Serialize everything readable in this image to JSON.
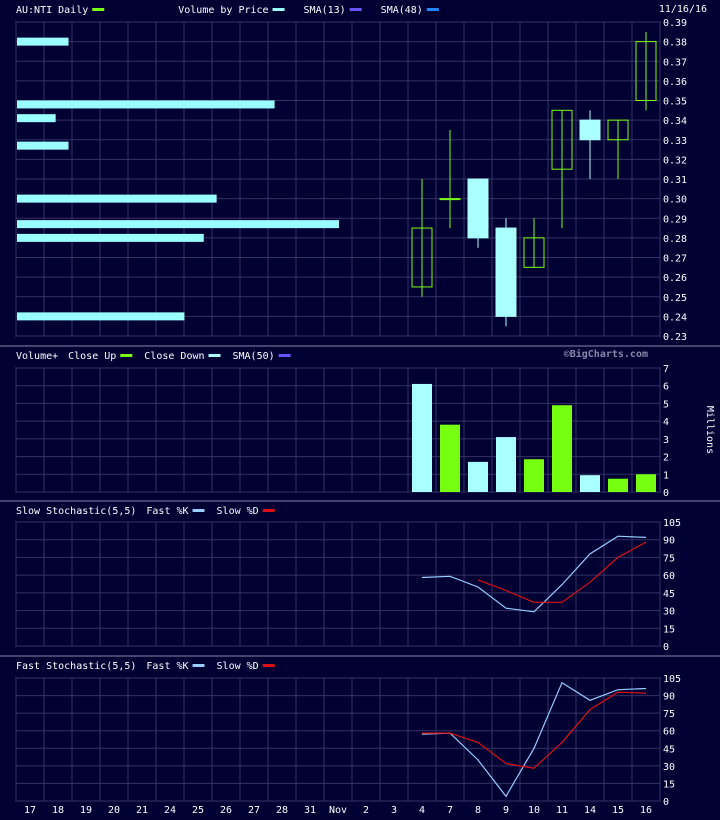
{
  "colors": {
    "background": "#000033",
    "grid": "#333366",
    "frame": "#8888aa",
    "text": "#ffffff",
    "up": "#77ff11",
    "down": "#aaffff",
    "vbp": "#99ffff",
    "sma13": "#99ffff",
    "sma48": "#6655ff",
    "sma48_alt": "#2288ff",
    "pctK": "#99ccff",
    "pctD": "#dd1111"
  },
  "date_stamp": "11/16/16",
  "watermark": "©BigCharts.com",
  "x_labels": [
    "17",
    "18",
    "19",
    "20",
    "21",
    "24",
    "25",
    "26",
    "27",
    "28",
    "31",
    "Nov",
    "2",
    "3",
    "4",
    "7",
    "8",
    "9",
    "10",
    "11",
    "14",
    "15",
    "16"
  ],
  "chart_data": [
    {
      "type": "candlestick",
      "legend": [
        {
          "label": "AU:NTI Daily",
          "color": "#77ff11"
        },
        {
          "label": "Volume by Price",
          "color": "#99ffff"
        },
        {
          "label": "SMA(13)",
          "color": "#6655ff"
        },
        {
          "label": "SMA(48)",
          "color": "#2288ff"
        }
      ],
      "ylim": [
        0.23,
        0.39
      ],
      "y_ticks": [
        "0.39",
        "0.38",
        "0.37",
        "0.36",
        "0.35",
        "0.34",
        "0.33",
        "0.32",
        "0.31",
        "0.30",
        "0.29",
        "0.28",
        "0.27",
        "0.26",
        "0.25",
        "0.24",
        "0.23"
      ],
      "candles": [
        {
          "date": "4",
          "open": 0.255,
          "high": 0.31,
          "low": 0.25,
          "close": 0.285
        },
        {
          "date": "7",
          "open": 0.3,
          "high": 0.335,
          "low": 0.285,
          "close": 0.3
        },
        {
          "date": "8",
          "open": 0.31,
          "high": 0.31,
          "low": 0.275,
          "close": 0.28
        },
        {
          "date": "9",
          "open": 0.285,
          "high": 0.29,
          "low": 0.235,
          "close": 0.24
        },
        {
          "date": "10",
          "open": 0.265,
          "high": 0.29,
          "low": 0.265,
          "close": 0.28
        },
        {
          "date": "11",
          "open": 0.315,
          "high": 0.345,
          "low": 0.285,
          "close": 0.345
        },
        {
          "date": "14",
          "open": 0.34,
          "high": 0.345,
          "low": 0.31,
          "close": 0.33
        },
        {
          "date": "15",
          "open": 0.33,
          "high": 0.34,
          "low": 0.31,
          "close": 0.34
        },
        {
          "date": "16",
          "open": 0.35,
          "high": 0.385,
          "low": 0.345,
          "close": 0.38
        }
      ],
      "volume_by_price": [
        {
          "price": 0.38,
          "length": 0.08
        },
        {
          "price": 0.348,
          "length": 0.4
        },
        {
          "price": 0.341,
          "length": 0.06
        },
        {
          "price": 0.327,
          "length": 0.08
        },
        {
          "price": 0.3,
          "length": 0.31
        },
        {
          "price": 0.287,
          "length": 0.5
        },
        {
          "price": 0.28,
          "length": 0.29
        },
        {
          "price": 0.24,
          "length": 0.26
        }
      ]
    },
    {
      "type": "bar",
      "legend": [
        {
          "label": "Volume+",
          "color": ""
        },
        {
          "label": "Close Up",
          "color": "#77ff11"
        },
        {
          "label": "Close Down",
          "color": "#aaffff"
        },
        {
          "label": "SMA(50)",
          "color": "#6655ff"
        }
      ],
      "ylabel": "Millions",
      "ylim": [
        0,
        7
      ],
      "y_ticks": [
        "7",
        "6",
        "5",
        "4",
        "3",
        "2",
        "1",
        "0"
      ],
      "categories": [
        "4",
        "7",
        "8",
        "9",
        "10",
        "11",
        "14",
        "15",
        "16"
      ],
      "values": [
        6.1,
        3.8,
        1.7,
        3.1,
        1.85,
        4.9,
        0.95,
        0.75,
        1.0
      ],
      "direction": [
        "down",
        "up",
        "down",
        "down",
        "up",
        "up",
        "down",
        "up",
        "up"
      ]
    },
    {
      "type": "line",
      "legend": [
        {
          "label": "Slow Stochastic(5,5)",
          "color": ""
        },
        {
          "label": "Fast %K",
          "color": "#99ccff"
        },
        {
          "label": "Slow %D",
          "color": "#dd1111"
        }
      ],
      "ylim": [
        0,
        105
      ],
      "y_ticks": [
        "105",
        "90",
        "75",
        "60",
        "45",
        "30",
        "15",
        "0"
      ],
      "categories": [
        "4",
        "7",
        "8",
        "9",
        "10",
        "11",
        "14",
        "15",
        "16"
      ],
      "series": [
        {
          "name": "Fast %K",
          "key": "pctK",
          "values": [
            58,
            59,
            50,
            32,
            29,
            52,
            78,
            93,
            92
          ]
        },
        {
          "name": "Slow %D",
          "key": "pctD",
          "values": [
            null,
            null,
            56,
            47,
            37,
            37,
            54,
            75,
            88
          ]
        }
      ]
    },
    {
      "type": "line",
      "legend": [
        {
          "label": "Fast Stochastic(5,5)",
          "color": ""
        },
        {
          "label": "Fast %K",
          "color": "#99ccff"
        },
        {
          "label": "Slow %D",
          "color": "#dd1111"
        }
      ],
      "ylim": [
        0,
        105
      ],
      "y_ticks": [
        "105",
        "90",
        "75",
        "60",
        "45",
        "30",
        "15",
        "0"
      ],
      "categories": [
        "4",
        "7",
        "8",
        "9",
        "10",
        "11",
        "14",
        "15",
        "16"
      ],
      "series": [
        {
          "name": "Fast %K",
          "key": "pctK",
          "values": [
            57,
            58,
            35,
            4,
            45,
            101,
            86,
            95,
            96
          ]
        },
        {
          "name": "Slow %D",
          "key": "pctD",
          "values": [
            58,
            58,
            50,
            32,
            28,
            50,
            78,
            93,
            92
          ]
        }
      ]
    }
  ]
}
